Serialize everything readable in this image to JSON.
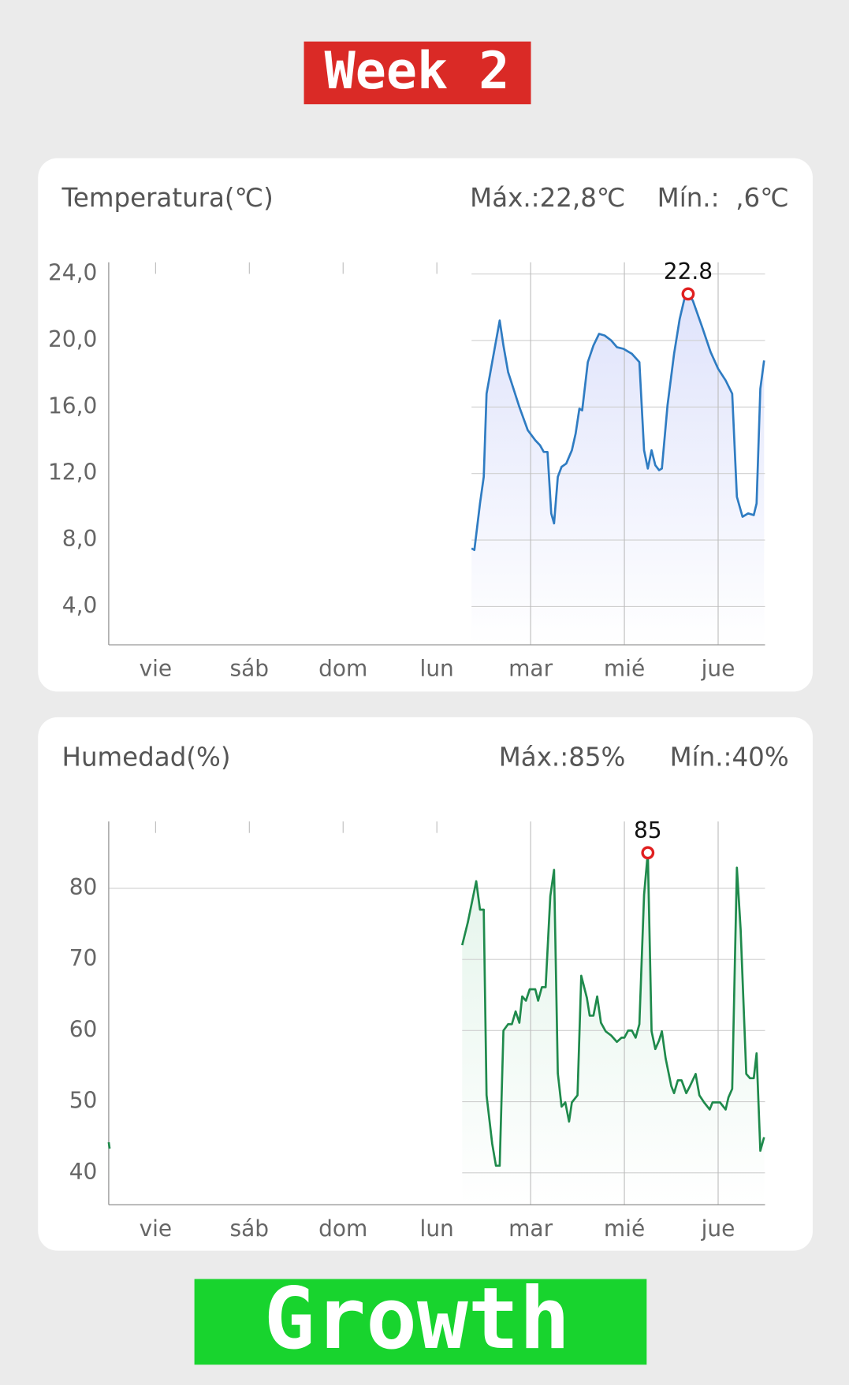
{
  "header": {
    "title": "Week 2"
  },
  "chart_data": [
    {
      "type": "line",
      "title": "Temperatura(℃)",
      "max_label": "Máx.:22,8℃",
      "min_label": "Mín.:  ,6℃",
      "xlim": [
        -0.5,
        6.5
      ],
      "xticks": [
        {
          "value": 0,
          "label": "vie"
        },
        {
          "value": 1,
          "label": "sáb"
        },
        {
          "value": 2,
          "label": "dom"
        },
        {
          "value": 3,
          "label": "lun"
        },
        {
          "value": 4,
          "label": "mar"
        },
        {
          "value": 5,
          "label": "mié"
        },
        {
          "value": 6,
          "label": "jue"
        }
      ],
      "ylim": [
        1.7,
        24.7
      ],
      "yticks": [
        {
          "value": 4,
          "label": "4,0"
        },
        {
          "value": 8,
          "label": "8,0"
        },
        {
          "value": 12,
          "label": "12,0"
        },
        {
          "value": 16,
          "label": "16,0"
        },
        {
          "value": 20,
          "label": "20,0"
        },
        {
          "value": 24,
          "label": "24,0"
        }
      ],
      "grid": true,
      "x": [
        3.37,
        3.4,
        3.46,
        3.5,
        3.53,
        3.59,
        3.67,
        3.71,
        3.76,
        3.88,
        3.97,
        4.05,
        4.1,
        4.14,
        4.18,
        4.22,
        4.25,
        4.29,
        4.33,
        4.38,
        4.44,
        4.48,
        4.52,
        4.55,
        4.61,
        4.67,
        4.73,
        4.79,
        4.86,
        4.92,
        4.99,
        5.08,
        5.16,
        5.21,
        5.25,
        5.29,
        5.33,
        5.37,
        5.4,
        5.46,
        5.53,
        5.59,
        5.64,
        5.68,
        5.73,
        5.83,
        5.92,
        6.0,
        6.08,
        6.15,
        6.2,
        6.26,
        6.32,
        6.38,
        6.41,
        6.45,
        6.49
      ],
      "series": [
        {
          "color": "#2f7cc2",
          "fill": "#dfe3fb",
          "values": [
            7.5,
            7.4,
            10.2,
            11.8,
            16.8,
            18.7,
            21.2,
            19.7,
            18.1,
            16.0,
            14.6,
            14.0,
            13.7,
            13.3,
            13.3,
            9.6,
            9.0,
            11.8,
            12.4,
            12.6,
            13.4,
            14.4,
            15.9,
            15.8,
            18.7,
            19.7,
            20.4,
            20.3,
            20.0,
            19.6,
            19.5,
            19.2,
            18.7,
            13.4,
            12.3,
            13.4,
            12.5,
            12.2,
            12.3,
            16.1,
            19.2,
            21.3,
            22.5,
            22.8,
            22.4,
            20.8,
            19.3,
            18.3,
            17.6,
            16.8,
            10.6,
            9.4,
            9.6,
            9.5,
            10.2,
            17.1,
            18.8
          ]
        }
      ],
      "annotation": {
        "x": 5.68,
        "value": 22.8,
        "color": "#e02020"
      }
    },
    {
      "type": "line",
      "title": "Humedad(%)",
      "max_label": "Máx.:85%",
      "min_label": "Mín.:40%",
      "xlim": [
        -0.5,
        6.5
      ],
      "xticks": [
        {
          "value": 0,
          "label": "vie"
        },
        {
          "value": 1,
          "label": "sáb"
        },
        {
          "value": 2,
          "label": "dom"
        },
        {
          "value": 3,
          "label": "lun"
        },
        {
          "value": 4,
          "label": "mar"
        },
        {
          "value": 5,
          "label": "mié"
        },
        {
          "value": 6,
          "label": "jue"
        }
      ],
      "ylim": [
        35.5,
        89.4
      ],
      "yticks": [
        40,
        50,
        60,
        70,
        80
      ],
      "grid": true,
      "x": [
        -0.5,
        -0.49,
        1.0,
        3.27,
        3.33,
        3.42,
        3.46,
        3.5,
        3.53,
        3.59,
        3.63,
        3.67,
        3.71,
        3.76,
        3.8,
        3.84,
        3.88,
        3.91,
        3.95,
        3.99,
        4.05,
        4.08,
        4.12,
        4.16,
        4.21,
        4.25,
        4.29,
        4.33,
        4.37,
        4.41,
        4.44,
        4.5,
        4.54,
        4.6,
        4.63,
        4.67,
        4.71,
        4.75,
        4.8,
        4.86,
        4.92,
        4.97,
        5.0,
        5.04,
        5.08,
        5.12,
        5.16,
        5.21,
        5.25,
        5.29,
        5.33,
        5.37,
        5.4,
        5.44,
        5.5,
        5.53,
        5.57,
        5.61,
        5.66,
        5.7,
        5.76,
        5.8,
        5.85,
        5.91,
        5.94,
        6.02,
        6.08,
        6.11,
        6.15,
        6.2,
        6.24,
        6.3,
        6.34,
        6.38,
        6.41,
        6.45,
        6.49
      ],
      "series": [
        {
          "color": "#1f8a4c",
          "fill": "#e3f4ea",
          "values": [
            44.3,
            43.4,
            null,
            72.0,
            75.2,
            81.0,
            77.0,
            77.0,
            50.9,
            44.1,
            41.0,
            41.0,
            60.0,
            60.9,
            60.9,
            62.7,
            61.1,
            64.8,
            64.2,
            65.8,
            65.8,
            64.2,
            66.1,
            66.1,
            78.9,
            82.6,
            54.0,
            49.3,
            49.9,
            47.2,
            49.9,
            50.9,
            67.7,
            64.6,
            62.1,
            62.1,
            64.8,
            61.1,
            59.9,
            59.3,
            58.4,
            59.0,
            59.0,
            60.0,
            60.0,
            59.0,
            60.9,
            79.1,
            85,
            59.9,
            57.4,
            58.6,
            59.9,
            56.1,
            52.2,
            51.2,
            53.0,
            53.0,
            51.2,
            52.2,
            53.9,
            50.9,
            49.9,
            48.9,
            49.9,
            49.9,
            48.9,
            50.6,
            51.8,
            82.9,
            74.2,
            53.9,
            53.3,
            53.3,
            56.8,
            43.1,
            45.0
          ]
        }
      ],
      "annotation": {
        "x": 5.25,
        "value": 85,
        "color": "#e02020"
      }
    }
  ],
  "footer": {
    "label": "Growth"
  }
}
